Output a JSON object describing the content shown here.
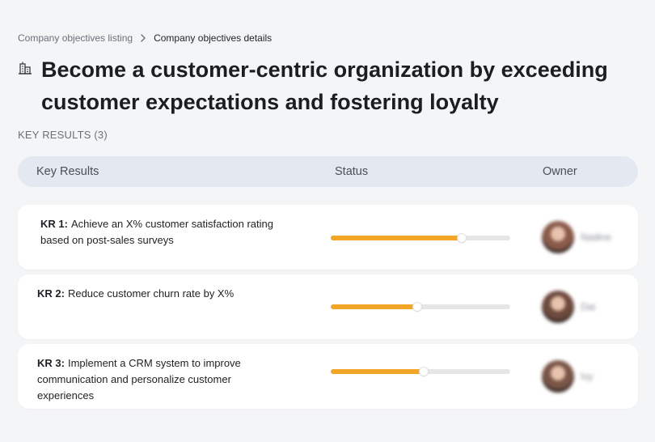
{
  "breadcrumb": {
    "parent": "Company objectives listing",
    "current": "Company objectives details"
  },
  "objective": {
    "title": "Become a customer-centric organization by exceeding customer expectations and fostering loyalty"
  },
  "key_results_section": {
    "label": "KEY RESULTS (3)"
  },
  "table": {
    "headers": {
      "key_results": "Key Results",
      "status": "Status",
      "owner": "Owner"
    },
    "rows": [
      {
        "code": "KR 1:",
        "text": "Achieve an X% customer satisfaction rating based on post-sales surveys",
        "progress": 0.73,
        "owner": {
          "name": "Nadine",
          "avatar_color": "#8a5a4a"
        }
      },
      {
        "code": "KR 2:",
        "text": "Reduce customer churn rate by X%",
        "progress": 0.48,
        "owner": {
          "name": "Dai",
          "avatar_color": "#6e4a3e"
        }
      },
      {
        "code": "KR 3:",
        "text": "Implement a CRM system to improve communication and personalize customer experiences",
        "progress": 0.52,
        "owner": {
          "name": "Ivy",
          "avatar_color": "#7a5548"
        }
      }
    ]
  },
  "colors": {
    "progress_fill": "#f3a525",
    "progress_track": "#e6e6e6",
    "header_bg": "#e3e8f1",
    "page_bg": "#f4f5f7"
  }
}
